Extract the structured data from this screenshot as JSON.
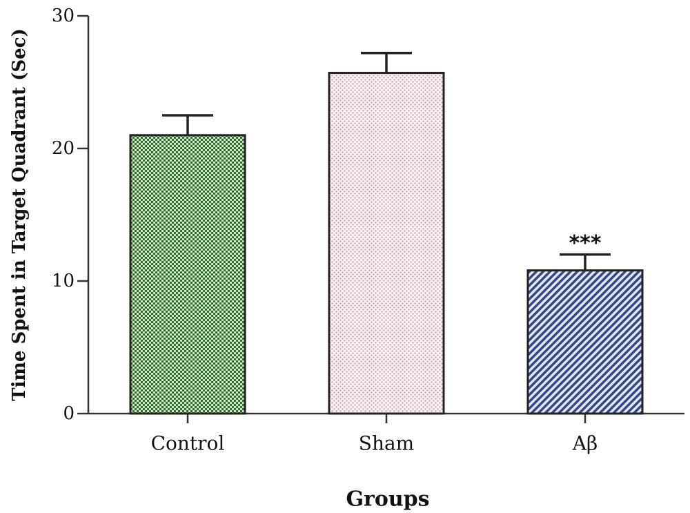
{
  "chart_data": {
    "type": "bar",
    "categories": [
      "Control",
      "Sham",
      "Aβ"
    ],
    "values": [
      21.0,
      25.7,
      10.8
    ],
    "errors": [
      1.5,
      1.5,
      1.2
    ],
    "significance": [
      "",
      "",
      "***"
    ],
    "xlabel": "Groups",
    "ylabel": "Time Spent in Target Quadrant (Sec)",
    "ylim": [
      0,
      30
    ],
    "yticks": [
      0,
      10,
      20,
      30
    ],
    "grid": false,
    "colors": [
      "#3f7a3a",
      "#e8c9d2",
      "#3a4a8c"
    ],
    "patterns": [
      "checker",
      "dots",
      "diagonal"
    ]
  }
}
